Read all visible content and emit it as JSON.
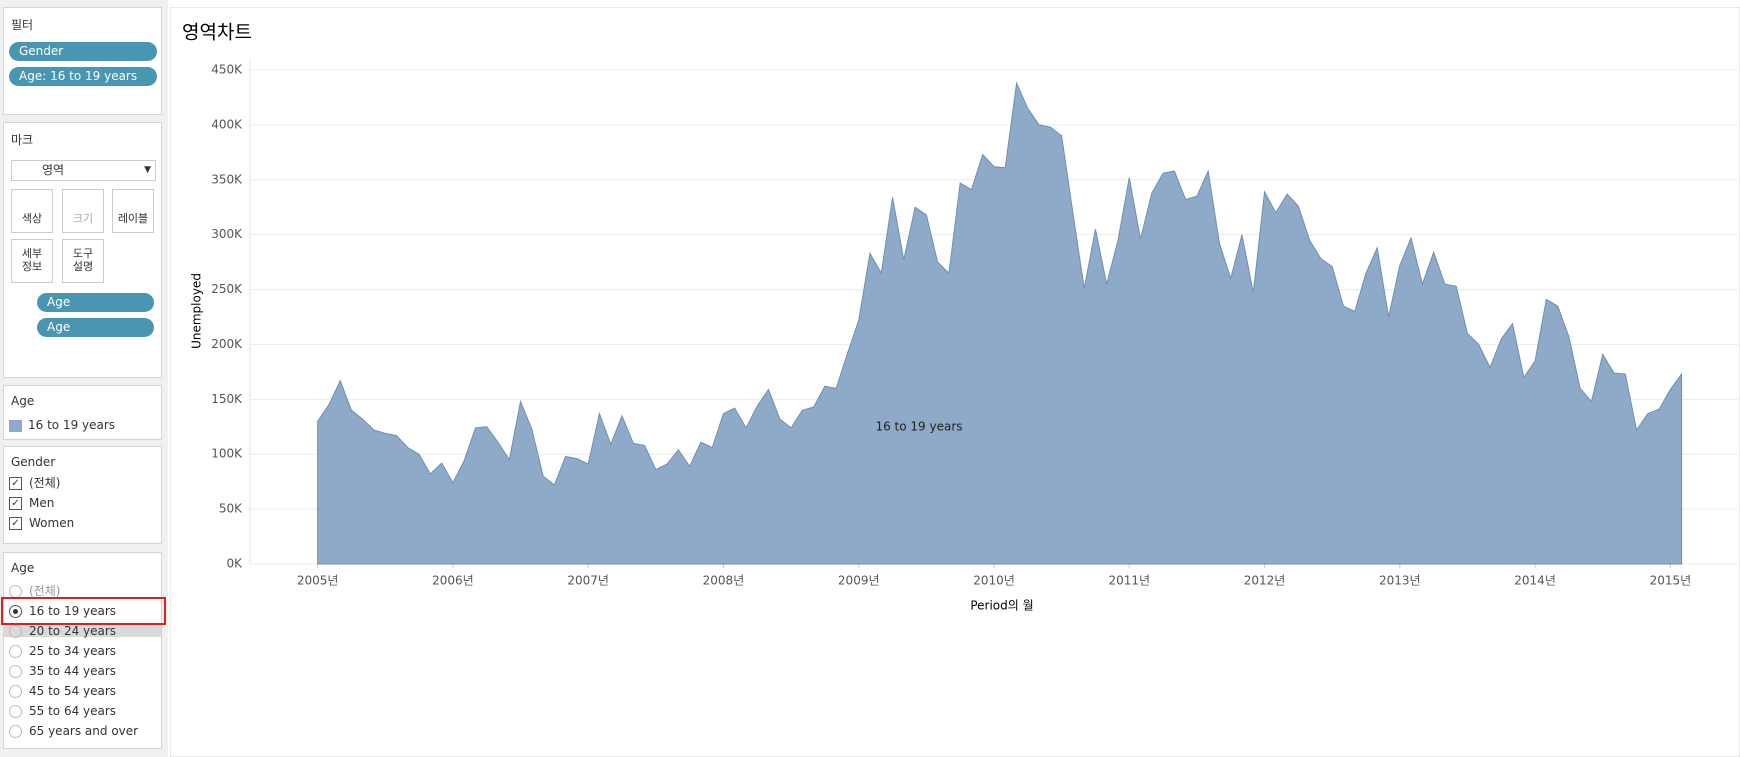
{
  "sidebar": {
    "filters": {
      "title": "필터",
      "pills": [
        "Gender",
        "Age: 16 to 19 years"
      ]
    },
    "marks": {
      "title": "마크",
      "mark_type": "영역",
      "buttons": [
        "색상",
        "크기",
        "레이블",
        "세부\n정보",
        "도구\n설명"
      ],
      "pills": [
        "Age",
        "Age"
      ]
    },
    "legend": {
      "title": "Age"
    },
    "gender_filter": {
      "title": "Gender",
      "items": [
        "(전체)",
        "Men",
        "Women"
      ]
    },
    "age_filter": {
      "title": "Age",
      "items": [
        "(전체)",
        "16 to 19 years",
        "20 to 24 years",
        "25 to 34 years",
        "35 to 44 years",
        "45 to 54 years",
        "55 to 64 years",
        "65 years and over"
      ],
      "selected_index": 1
    }
  },
  "chart_data": {
    "type": "area",
    "title": "영역차트",
    "x_label": "Period의 월",
    "y_label": "Unemployed",
    "grid": true,
    "xlim": [
      2004.5,
      2015.5
    ],
    "xticks": [
      {
        "value": 2005,
        "label": "2005년"
      },
      {
        "value": 2006,
        "label": "2006년"
      },
      {
        "value": 2007,
        "label": "2007년"
      },
      {
        "value": 2008,
        "label": "2008년"
      },
      {
        "value": 2009,
        "label": "2009년"
      },
      {
        "value": 2010,
        "label": "2010년"
      },
      {
        "value": 2011,
        "label": "2011년"
      },
      {
        "value": 2012,
        "label": "2012년"
      },
      {
        "value": 2013,
        "label": "2013년"
      },
      {
        "value": 2014,
        "label": "2014년"
      },
      {
        "value": 2015,
        "label": "2015년"
      }
    ],
    "ylim": [
      0,
      450000
    ],
    "yticks": [
      {
        "value": 0,
        "label": "0K"
      },
      {
        "value": 50000,
        "label": "50K"
      },
      {
        "value": 100000,
        "label": "100K"
      },
      {
        "value": 150000,
        "label": "150K"
      },
      {
        "value": 200000,
        "label": "200K"
      },
      {
        "value": 250000,
        "label": "250K"
      },
      {
        "value": 300000,
        "label": "300K"
      },
      {
        "value": 350000,
        "label": "350K"
      },
      {
        "value": 400000,
        "label": "400K"
      },
      {
        "value": 450000,
        "label": "450K"
      }
    ],
    "x": [
      2005,
      2005.083,
      2005.167,
      2005.25,
      2005.333,
      2005.417,
      2005.5,
      2005.583,
      2005.667,
      2005.75,
      2005.833,
      2005.917,
      2006,
      2006.083,
      2006.167,
      2006.25,
      2006.333,
      2006.417,
      2006.5,
      2006.583,
      2006.667,
      2006.75,
      2006.833,
      2006.917,
      2007,
      2007.083,
      2007.167,
      2007.25,
      2007.333,
      2007.417,
      2007.5,
      2007.583,
      2007.667,
      2007.75,
      2007.833,
      2007.917,
      2008,
      2008.083,
      2008.167,
      2008.25,
      2008.333,
      2008.417,
      2008.5,
      2008.583,
      2008.667,
      2008.75,
      2008.833,
      2008.917,
      2009,
      2009.083,
      2009.167,
      2009.25,
      2009.333,
      2009.417,
      2009.5,
      2009.583,
      2009.667,
      2009.75,
      2009.833,
      2009.917,
      2010,
      2010.083,
      2010.167,
      2010.25,
      2010.333,
      2010.417,
      2010.5,
      2010.583,
      2010.667,
      2010.75,
      2010.833,
      2010.917,
      2011,
      2011.083,
      2011.167,
      2011.25,
      2011.333,
      2011.417,
      2011.5,
      2011.583,
      2011.667,
      2011.75,
      2011.833,
      2011.917,
      2012,
      2012.083,
      2012.167,
      2012.25,
      2012.333,
      2012.417,
      2012.5,
      2012.583,
      2012.667,
      2012.75,
      2012.833,
      2012.917,
      2013,
      2013.083,
      2013.167,
      2013.25,
      2013.333,
      2013.417,
      2013.5,
      2013.583,
      2013.667,
      2013.75,
      2013.833,
      2013.917,
      2014,
      2014.083,
      2014.167,
      2014.25,
      2014.333,
      2014.417,
      2014.5,
      2014.583,
      2014.667,
      2014.75,
      2014.833,
      2014.917,
      2015,
      2015.083
    ],
    "series": [
      {
        "name": "16 to 19 years",
        "color": "#8eaac8",
        "stroke": "#6f8fb4",
        "values": [
          130000,
          145000,
          167000,
          140000,
          132000,
          122000,
          119000,
          117000,
          106000,
          100000,
          82000,
          92000,
          74000,
          94000,
          124000,
          125000,
          111000,
          95000,
          148000,
          123000,
          80000,
          72000,
          98000,
          96000,
          91000,
          137000,
          109000,
          135000,
          110000,
          108000,
          86000,
          91000,
          104000,
          89000,
          111000,
          106000,
          137000,
          142000,
          124000,
          144000,
          159000,
          132000,
          124000,
          140000,
          143000,
          162000,
          160000,
          192000,
          222000,
          283000,
          265000,
          334000,
          277000,
          325000,
          318000,
          275000,
          265000,
          347000,
          341000,
          373000,
          362000,
          361000,
          438000,
          415000,
          400000,
          398000,
          390000,
          320000,
          251000,
          305000,
          255000,
          295000,
          352000,
          296000,
          338000,
          356000,
          358000,
          332000,
          335000,
          358000,
          292000,
          260000,
          300000,
          247000,
          339000,
          320000,
          337000,
          326000,
          295000,
          278000,
          271000,
          235000,
          230000,
          265000,
          288000,
          225000,
          272000,
          297000,
          255000,
          284000,
          255000,
          253000,
          210000,
          200000,
          179000,
          205000,
          219000,
          170000,
          185000,
          241000,
          235000,
          207000,
          160000,
          148000,
          191000,
          174000,
          173000,
          122000,
          137000,
          141000,
          159000,
          173000
        ]
      }
    ]
  }
}
